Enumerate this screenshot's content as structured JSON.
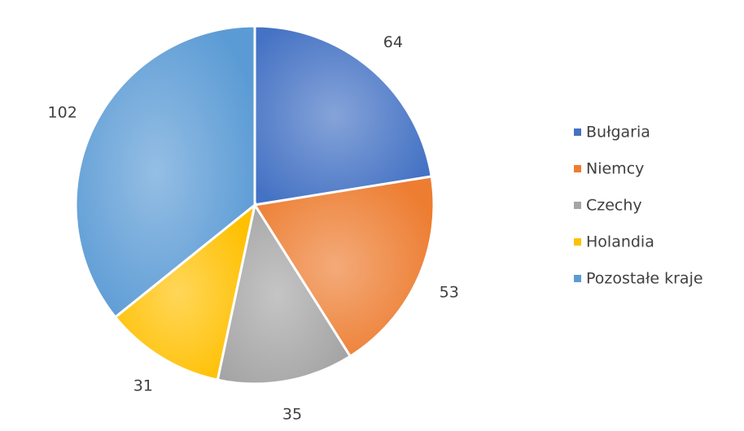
{
  "chart_data": {
    "type": "pie",
    "categories": [
      "Bułgaria",
      "Niemcy",
      "Czechy",
      "Holandia",
      "Pozostałe kraje"
    ],
    "values": [
      64,
      53,
      35,
      31,
      102
    ],
    "colors": [
      "#4472c4",
      "#ed7d31",
      "#a5a5a5",
      "#ffc000",
      "#5b9bd5"
    ],
    "legend": "right"
  }
}
